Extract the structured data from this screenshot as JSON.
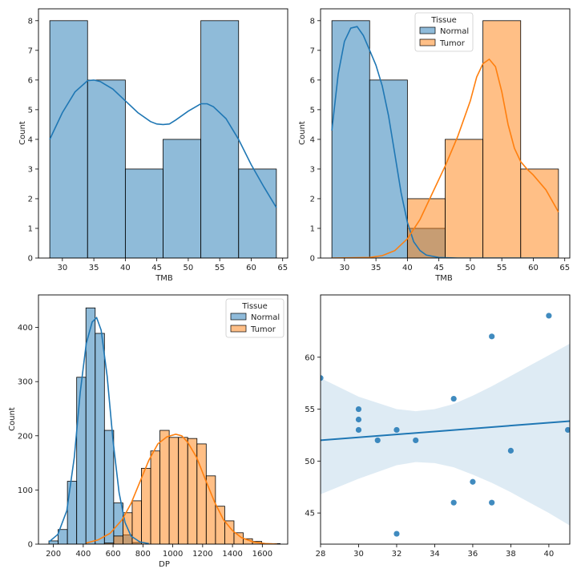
{
  "chart_data": [
    {
      "id": "p1",
      "type": "histogram",
      "xlabel": "TMB",
      "ylabel": "Count",
      "xlim": [
        26.2,
        65.8
      ],
      "ylim": [
        0,
        8.4
      ],
      "xticks": [
        30,
        35,
        40,
        45,
        50,
        55,
        60,
        65
      ],
      "yticks": [
        0,
        1,
        2,
        3,
        4,
        5,
        6,
        7,
        8
      ],
      "legend": null,
      "series": [
        {
          "color": "#1f77b4",
          "bins": [
            [
              28,
              34,
              8
            ],
            [
              34,
              40,
              6
            ],
            [
              40,
              46,
              3
            ],
            [
              46,
              52,
              4
            ],
            [
              52,
              58,
              8
            ],
            [
              58,
              64,
              3
            ]
          ],
          "kde": [
            [
              28,
              4.0
            ],
            [
              30,
              4.9
            ],
            [
              32,
              5.6
            ],
            [
              34,
              5.98
            ],
            [
              35,
              6.0
            ],
            [
              36,
              5.95
            ],
            [
              38,
              5.7
            ],
            [
              40,
              5.3
            ],
            [
              42,
              4.9
            ],
            [
              44,
              4.6
            ],
            [
              45,
              4.52
            ],
            [
              46,
              4.5
            ],
            [
              47,
              4.52
            ],
            [
              48,
              4.65
            ],
            [
              50,
              4.95
            ],
            [
              52,
              5.2
            ],
            [
              53,
              5.2
            ],
            [
              54,
              5.1
            ],
            [
              56,
              4.7
            ],
            [
              58,
              4.0
            ],
            [
              60,
              3.15
            ],
            [
              62,
              2.4
            ],
            [
              64,
              1.7
            ]
          ]
        }
      ]
    },
    {
      "id": "p2",
      "type": "histogram",
      "xlabel": "TMB",
      "ylabel": "Count",
      "xlim": [
        26.2,
        65.8
      ],
      "ylim": [
        0,
        8.4
      ],
      "xticks": [
        30,
        35,
        40,
        45,
        50,
        55,
        60,
        65
      ],
      "yticks": [
        0,
        1,
        2,
        3,
        4,
        5,
        6,
        7,
        8
      ],
      "legend": {
        "title": "Tissue",
        "location": "upper center"
      },
      "series": [
        {
          "name": "Normal",
          "color": "#1f77b4",
          "bins": [
            [
              28,
              34,
              8
            ],
            [
              34,
              40,
              6
            ],
            [
              40,
              46,
              1
            ]
          ],
          "kde": [
            [
              28,
              4.3
            ],
            [
              29,
              6.2
            ],
            [
              30,
              7.3
            ],
            [
              31,
              7.75
            ],
            [
              32,
              7.8
            ],
            [
              33,
              7.5
            ],
            [
              34,
              7.0
            ],
            [
              35,
              6.5
            ],
            [
              36,
              5.8
            ],
            [
              37,
              4.8
            ],
            [
              38,
              3.5
            ],
            [
              39,
              2.2
            ],
            [
              40,
              1.2
            ],
            [
              41,
              0.55
            ],
            [
              42,
              0.25
            ],
            [
              43,
              0.1
            ],
            [
              45,
              0.02
            ],
            [
              48,
              0.0
            ],
            [
              64,
              0.0
            ]
          ]
        },
        {
          "name": "Tumor",
          "color": "#ff7f0e",
          "bins": [
            [
              40,
              46,
              2
            ],
            [
              46,
              52,
              4
            ],
            [
              52,
              58,
              8
            ],
            [
              58,
              64,
              3
            ]
          ],
          "kde": [
            [
              28,
              0.0
            ],
            [
              34,
              0.02
            ],
            [
              36,
              0.08
            ],
            [
              38,
              0.25
            ],
            [
              40,
              0.65
            ],
            [
              42,
              1.3
            ],
            [
              44,
              2.2
            ],
            [
              46,
              3.1
            ],
            [
              48,
              4.1
            ],
            [
              50,
              5.3
            ],
            [
              51,
              6.1
            ],
            [
              52,
              6.55
            ],
            [
              53,
              6.7
            ],
            [
              54,
              6.45
            ],
            [
              55,
              5.6
            ],
            [
              56,
              4.5
            ],
            [
              57,
              3.7
            ],
            [
              58,
              3.25
            ],
            [
              59,
              3.0
            ],
            [
              60,
              2.8
            ],
            [
              62,
              2.3
            ],
            [
              64,
              1.55
            ]
          ]
        }
      ]
    },
    {
      "id": "p3",
      "type": "histogram",
      "xlabel": "DP",
      "ylabel": "Count",
      "xlim": [
        100,
        1770
      ],
      "ylim": [
        0,
        460
      ],
      "xticks": [
        200,
        400,
        600,
        800,
        1000,
        1200,
        1400,
        1600
      ],
      "yticks": [
        0,
        100,
        200,
        300,
        400
      ],
      "legend": {
        "title": "Tissue",
        "location": "upper right"
      },
      "series": [
        {
          "name": "Normal",
          "color": "#1f77b4",
          "bins": [
            [
              170,
              232,
              6
            ],
            [
              232,
              294,
              27
            ],
            [
              294,
              356,
              116
            ],
            [
              356,
              418,
              308
            ],
            [
              418,
              480,
              436
            ],
            [
              480,
              542,
              389
            ],
            [
              542,
              604,
              210
            ],
            [
              604,
              666,
              76
            ],
            [
              666,
              728,
              17
            ],
            [
              728,
              790,
              3
            ]
          ],
          "kde": [
            [
              170,
              4
            ],
            [
              230,
              18
            ],
            [
              290,
              62
            ],
            [
              340,
              160
            ],
            [
              380,
              280
            ],
            [
              420,
              370
            ],
            [
              460,
              410
            ],
            [
              490,
              418
            ],
            [
              520,
              395
            ],
            [
              560,
              310
            ],
            [
              600,
              190
            ],
            [
              640,
              95
            ],
            [
              680,
              40
            ],
            [
              720,
              15
            ],
            [
              780,
              4
            ],
            [
              840,
              1
            ]
          ]
        },
        {
          "name": "Tumor",
          "color": "#ff7f0e",
          "bins": [
            [
              542,
              604,
              2
            ],
            [
              604,
              666,
              15
            ],
            [
              666,
              728,
              58
            ],
            [
              728,
              790,
              80
            ],
            [
              790,
              852,
              140
            ],
            [
              852,
              914,
              172
            ],
            [
              914,
              976,
              210
            ],
            [
              976,
              1038,
              197
            ],
            [
              1038,
              1100,
              197
            ],
            [
              1100,
              1162,
              195
            ],
            [
              1162,
              1224,
              185
            ],
            [
              1224,
              1286,
              126
            ],
            [
              1286,
              1348,
              70
            ],
            [
              1348,
              1410,
              43
            ],
            [
              1410,
              1472,
              21
            ],
            [
              1472,
              1534,
              10
            ],
            [
              1534,
              1596,
              5
            ],
            [
              1596,
              1658,
              1
            ],
            [
              1658,
              1720,
              1
            ]
          ],
          "kde": [
            [
              420,
              2
            ],
            [
              500,
              8
            ],
            [
              580,
              20
            ],
            [
              660,
              45
            ],
            [
              720,
              75
            ],
            [
              780,
              115
            ],
            [
              840,
              155
            ],
            [
              900,
              185
            ],
            [
              960,
              198
            ],
            [
              1020,
              203
            ],
            [
              1060,
              200
            ],
            [
              1100,
              188
            ],
            [
              1160,
              160
            ],
            [
              1220,
              118
            ],
            [
              1280,
              78
            ],
            [
              1340,
              45
            ],
            [
              1400,
              25
            ],
            [
              1460,
              12
            ],
            [
              1540,
              4
            ],
            [
              1620,
              1
            ],
            [
              1700,
              0
            ]
          ]
        }
      ]
    },
    {
      "id": "p4",
      "type": "scatter",
      "xlabel": "",
      "ylabel": "",
      "xlim": [
        28,
        41.1
      ],
      "ylim": [
        42,
        66
      ],
      "xticks": [
        28,
        30,
        32,
        34,
        36,
        38,
        40
      ],
      "yticks": [
        45,
        50,
        55,
        60
      ],
      "legend": null,
      "color": "#1f77b4",
      "points": [
        [
          28,
          58
        ],
        [
          30,
          55
        ],
        [
          30,
          54
        ],
        [
          30,
          53
        ],
        [
          31,
          52
        ],
        [
          32,
          53
        ],
        [
          32,
          43
        ],
        [
          33,
          52
        ],
        [
          35,
          56
        ],
        [
          35,
          46
        ],
        [
          36,
          48
        ],
        [
          37,
          62
        ],
        [
          37,
          46
        ],
        [
          38,
          51
        ],
        [
          40,
          64
        ],
        [
          41,
          53
        ]
      ],
      "regression": {
        "x": [
          28,
          41.1
        ],
        "y": [
          52.0,
          53.85
        ]
      },
      "ci": [
        [
          28,
          46.8,
          58.0
        ],
        [
          30,
          48.3,
          56.2
        ],
        [
          32,
          49.6,
          55.0
        ],
        [
          33,
          49.9,
          54.8
        ],
        [
          34,
          49.8,
          55.0
        ],
        [
          35,
          49.4,
          55.5
        ],
        [
          36,
          48.7,
          56.3
        ],
        [
          37,
          47.9,
          57.2
        ],
        [
          38,
          47.0,
          58.2
        ],
        [
          39,
          46.0,
          59.2
        ],
        [
          40,
          45.0,
          60.2
        ],
        [
          41.1,
          43.8,
          61.3
        ]
      ]
    }
  ]
}
